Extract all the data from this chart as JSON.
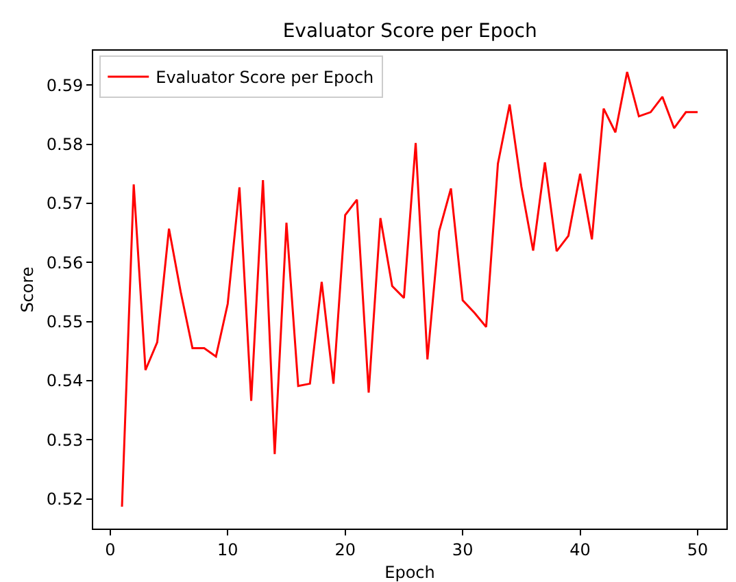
{
  "chart_data": {
    "type": "line",
    "title": "Evaluator Score per Epoch",
    "xlabel": "Epoch",
    "ylabel": "Score",
    "x": [
      1,
      2,
      3,
      4,
      5,
      6,
      7,
      8,
      9,
      10,
      11,
      12,
      13,
      14,
      15,
      16,
      17,
      18,
      19,
      20,
      21,
      22,
      23,
      24,
      25,
      26,
      27,
      28,
      29,
      30,
      31,
      32,
      33,
      34,
      35,
      36,
      37,
      38,
      39,
      40,
      41,
      42,
      43,
      44,
      45,
      46,
      47,
      48,
      49,
      50
    ],
    "series": [
      {
        "name": "Evaluator Score per Epoch",
        "color": "#ff0000",
        "values": [
          0.5187,
          0.5732,
          0.5418,
          0.5465,
          0.5657,
          0.555,
          0.5455,
          0.5455,
          0.5441,
          0.553,
          0.5727,
          0.5366,
          0.5739,
          0.5276,
          0.5667,
          0.5391,
          0.5395,
          0.5567,
          0.5395,
          0.568,
          0.5706,
          0.538,
          0.5675,
          0.556,
          0.554,
          0.5802,
          0.5436,
          0.5653,
          0.5725,
          0.5536,
          0.5515,
          0.5491,
          0.5767,
          0.5867,
          0.5728,
          0.562,
          0.5769,
          0.5619,
          0.5645,
          0.575,
          0.5639,
          0.586,
          0.582,
          0.5922,
          0.5847,
          0.5854,
          0.588,
          0.5827,
          0.5854,
          0.5854
        ]
      }
    ],
    "xlim": [
      -1.45,
      52.45
    ],
    "ylim": [
      0.515,
      0.5958
    ],
    "xticks": [
      0,
      10,
      20,
      30,
      40,
      50
    ],
    "yticks": [
      0.52,
      0.53,
      0.54,
      0.55,
      0.56,
      0.57,
      0.58,
      0.59
    ],
    "grid": false,
    "legend": "top left",
    "marker": "none",
    "line_style": "solid"
  }
}
